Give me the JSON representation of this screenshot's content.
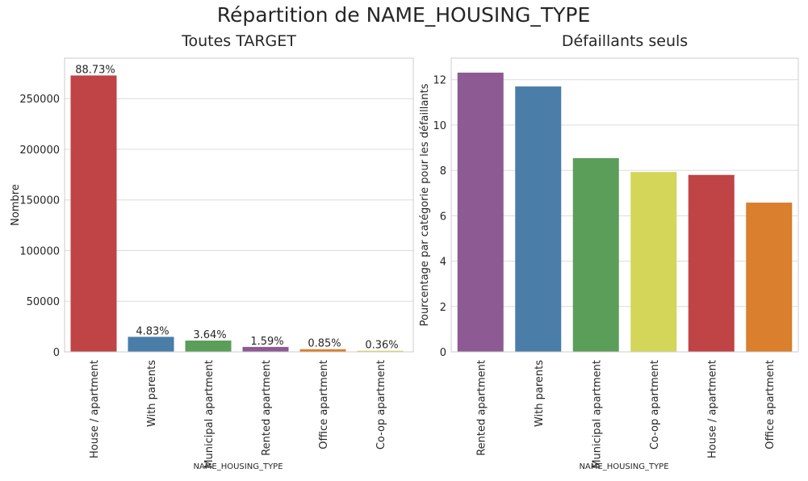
{
  "figure_title": "Répartition de NAME_HOUSING_TYPE",
  "chart_data": [
    {
      "type": "bar",
      "title": "Toutes TARGET",
      "xlabel": "NAME_HOUSING_TYPE",
      "ylabel": "Nombre",
      "categories": [
        "House / apartment",
        "With parents",
        "Municipal apartment",
        "Rented apartment",
        "Office apartment",
        "Co-op apartment"
      ],
      "values": [
        272868,
        14840,
        11183,
        4881,
        2617,
        1122
      ],
      "data_labels": [
        "88.73%",
        "4.83%",
        "3.64%",
        "1.59%",
        "0.85%",
        "0.36%"
      ],
      "colors": [
        "#c04345",
        "#4a7da8",
        "#5b9e5a",
        "#8e5a93",
        "#d97f2d",
        "#d3d659"
      ],
      "yticks": [
        0,
        50000,
        100000,
        150000,
        200000,
        250000
      ],
      "ylim": [
        0,
        290000
      ],
      "grid": true
    },
    {
      "type": "bar",
      "title": "Défaillants seuls",
      "xlabel": "NAME_HOUSING_TYPE",
      "ylabel": "Pourcentage par catégorie pour les défaillants",
      "categories": [
        "Rented apartment",
        "With parents",
        "Municipal apartment",
        "Co-op apartment",
        "House / apartment",
        "Office apartment"
      ],
      "values": [
        12.31,
        11.7,
        8.54,
        7.93,
        7.8,
        6.58
      ],
      "colors": [
        "#8e5a93",
        "#4a7da8",
        "#5b9e5a",
        "#d3d659",
        "#c04345",
        "#d97f2d"
      ],
      "yticks": [
        0,
        2,
        4,
        6,
        8,
        10,
        12
      ],
      "ylim": [
        0,
        12.95
      ],
      "grid": true
    }
  ]
}
